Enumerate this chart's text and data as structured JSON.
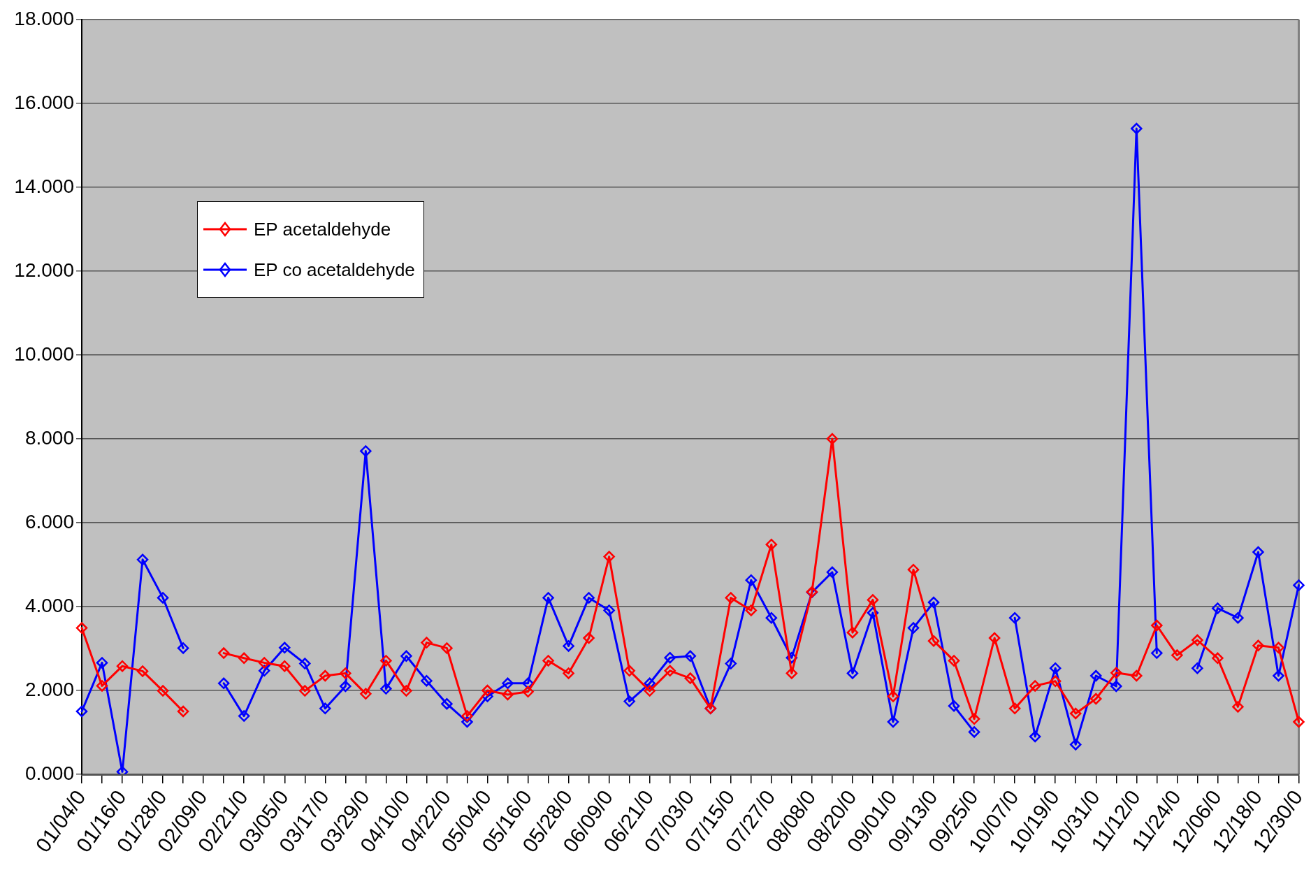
{
  "chart_data": {
    "type": "line",
    "categories": [
      "01/04/0",
      null,
      "01/16/0",
      null,
      "01/28/0",
      null,
      "02/09/0",
      null,
      "02/21/0",
      null,
      "03/05/0",
      null,
      "03/17/0",
      null,
      "03/29/0",
      null,
      "04/10/0",
      null,
      "04/22/0",
      null,
      "05/04/0",
      null,
      "05/16/0",
      null,
      "05/28/0",
      null,
      "06/09/0",
      null,
      "06/21/0",
      null,
      "07/03/0",
      null,
      "07/15/0",
      null,
      "07/27/0",
      null,
      "08/08/0",
      null,
      "08/20/0",
      null,
      "09/01/0",
      null,
      "09/13/0",
      null,
      "09/25/0",
      null,
      "10/07/0",
      null,
      "10/19/0",
      null,
      "10/31/0",
      null,
      "11/12/0",
      null,
      "11/24/0",
      null,
      "12/06/0",
      null,
      "12/18/0",
      null,
      "12/30/0"
    ],
    "series": [
      {
        "name": "EP acetaldehyde",
        "color": "#ff0000",
        "values": [
          3.49,
          2.11,
          2.58,
          2.46,
          1.99,
          1.5,
          null,
          2.89,
          2.77,
          2.66,
          2.58,
          1.99,
          2.35,
          2.41,
          1.92,
          2.71,
          1.99,
          3.14,
          3.01,
          1.39,
          2.0,
          1.9,
          1.97,
          2.71,
          2.41,
          3.25,
          5.19,
          2.47,
          1.99,
          2.47,
          2.29,
          1.57,
          4.21,
          3.91,
          5.48,
          2.41,
          4.35,
          8.0,
          3.38,
          4.16,
          1.86,
          4.88,
          3.18,
          2.71,
          1.32,
          3.25,
          1.57,
          2.11,
          2.22,
          1.45,
          1.8,
          2.42,
          2.35,
          3.55,
          2.84,
          3.2,
          2.77,
          1.61,
          3.07,
          3.02,
          1.25
        ]
      },
      {
        "name": "EP co acetaldehyde",
        "color": "#0000ff",
        "values": [
          1.5,
          2.66,
          0.06,
          5.12,
          4.21,
          3.01,
          null,
          2.17,
          1.39,
          2.47,
          3.02,
          2.64,
          1.57,
          2.1,
          7.71,
          2.04,
          2.82,
          2.23,
          1.68,
          1.25,
          1.86,
          2.17,
          2.17,
          4.21,
          3.06,
          4.21,
          3.91,
          1.74,
          2.17,
          2.78,
          2.82,
          1.57,
          2.64,
          4.63,
          3.73,
          2.78,
          4.34,
          4.82,
          2.41,
          3.85,
          1.25,
          3.49,
          4.1,
          1.63,
          1.01,
          null,
          3.73,
          0.9,
          2.53,
          0.71,
          2.35,
          2.1,
          15.4,
          2.89,
          null,
          2.53,
          3.96,
          3.73,
          5.3,
          2.35,
          4.51
        ]
      }
    ],
    "ylim": [
      0,
      18
    ],
    "yticks": [
      {
        "value": 0,
        "label": "0.000"
      },
      {
        "value": 2,
        "label": "2.000"
      },
      {
        "value": 4,
        "label": "4.000"
      },
      {
        "value": 6,
        "label": "6.000"
      },
      {
        "value": 8,
        "label": "8.000"
      },
      {
        "value": 10,
        "label": "10.000"
      },
      {
        "value": 12,
        "label": "12.000"
      },
      {
        "value": 14,
        "label": "14.000"
      },
      {
        "value": 16,
        "label": "16.000"
      },
      {
        "value": 18,
        "label": "18.000"
      }
    ],
    "grid": "y",
    "legend": "top left",
    "marker": "diamond",
    "line_style": "solid"
  }
}
